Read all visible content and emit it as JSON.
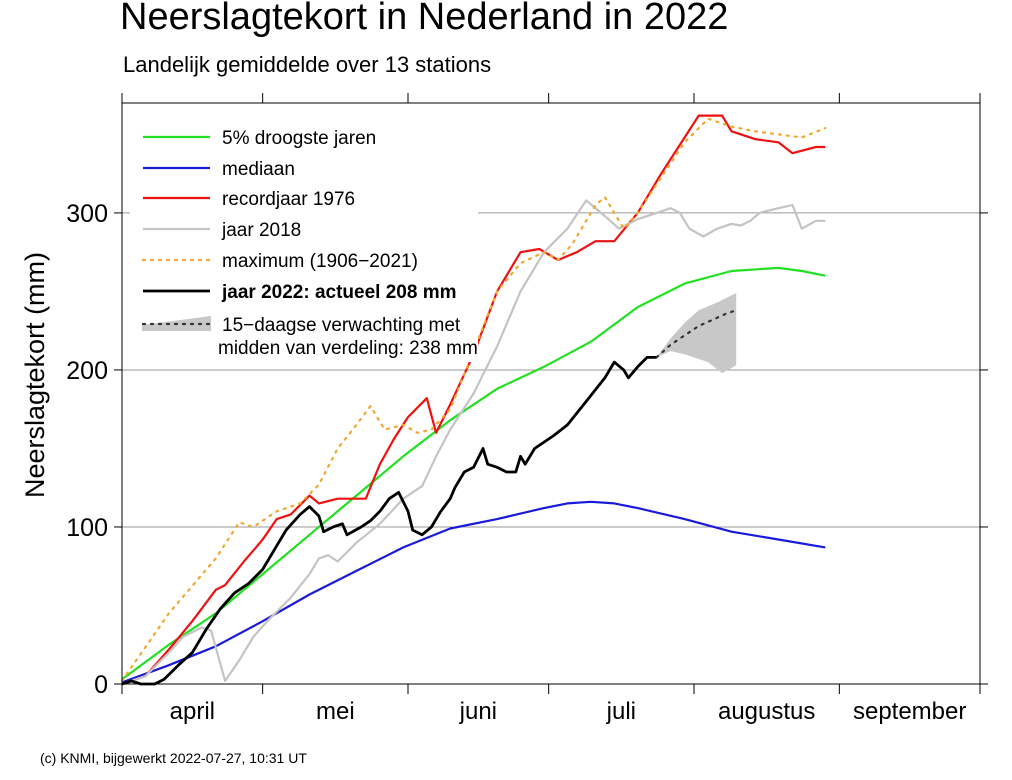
{
  "header": {
    "title": "Neerslagtekort in Nederland in 2022",
    "subtitle": "Landelijk gemiddelde over 13 stations"
  },
  "footer": {
    "credit": "(c) KNMI, bijgewerkt 2022-07-27, 10:31 UT"
  },
  "chart_data": {
    "type": "line",
    "title": "Neerslagtekort in Nederland in 2022",
    "subtitle": "Landelijk gemiddelde over 13 stations",
    "xlabel": "",
    "ylabel": "Neerslagtekort (mm)",
    "x_unit": "day of season (day 0 = 1 april)",
    "xlim": [
      0,
      183
    ],
    "ylim": [
      0,
      370
    ],
    "yticks": [
      0,
      100,
      200,
      300
    ],
    "month_ticks": [
      0,
      30,
      61,
      91,
      122,
      153,
      183
    ],
    "month_labels": [
      "april",
      "mei",
      "juni",
      "juli",
      "augustus",
      "september"
    ],
    "grid": "horizontal",
    "legend_position": "top-left",
    "series": [
      {
        "id": "p5",
        "name": "5% droogste jaren",
        "color": "#22e022",
        "width": 2.2,
        "style": "solid",
        "points": [
          [
            0,
            3
          ],
          [
            10,
            25
          ],
          [
            20,
            45
          ],
          [
            30,
            70
          ],
          [
            40,
            95
          ],
          [
            50,
            120
          ],
          [
            60,
            145
          ],
          [
            70,
            168
          ],
          [
            80,
            188
          ],
          [
            90,
            202
          ],
          [
            100,
            218
          ],
          [
            110,
            240
          ],
          [
            120,
            255
          ],
          [
            130,
            263
          ],
          [
            140,
            265
          ],
          [
            145,
            263
          ],
          [
            150,
            260
          ]
        ]
      },
      {
        "id": "median",
        "name": "mediaan",
        "color": "#1a1adb",
        "width": 2.2,
        "style": "solid",
        "points": [
          [
            0,
            1
          ],
          [
            10,
            12
          ],
          [
            20,
            24
          ],
          [
            30,
            40
          ],
          [
            40,
            57
          ],
          [
            50,
            72
          ],
          [
            60,
            87
          ],
          [
            70,
            99
          ],
          [
            80,
            105
          ],
          [
            90,
            112
          ],
          [
            95,
            115
          ],
          [
            100,
            116
          ],
          [
            105,
            115
          ],
          [
            110,
            112
          ],
          [
            120,
            105
          ],
          [
            130,
            97
          ],
          [
            140,
            92
          ],
          [
            150,
            87
          ]
        ]
      },
      {
        "id": "rec1976",
        "name": "recordjaar 1976",
        "color": "#ee1111",
        "width": 2.2,
        "style": "solid",
        "points": [
          [
            0,
            0
          ],
          [
            5,
            5
          ],
          [
            10,
            22
          ],
          [
            15,
            40
          ],
          [
            20,
            60
          ],
          [
            22,
            63
          ],
          [
            26,
            78
          ],
          [
            30,
            92
          ],
          [
            33,
            105
          ],
          [
            36,
            108
          ],
          [
            40,
            120
          ],
          [
            42,
            115
          ],
          [
            46,
            118
          ],
          [
            50,
            118
          ],
          [
            52,
            118
          ],
          [
            55,
            140
          ],
          [
            58,
            156
          ],
          [
            61,
            170
          ],
          [
            65,
            182
          ],
          [
            67,
            160
          ],
          [
            70,
            178
          ],
          [
            75,
            210
          ],
          [
            80,
            250
          ],
          [
            85,
            275
          ],
          [
            89,
            277
          ],
          [
            93,
            270
          ],
          [
            97,
            275
          ],
          [
            101,
            282
          ],
          [
            105,
            282
          ],
          [
            110,
            300
          ],
          [
            115,
            325
          ],
          [
            120,
            348
          ],
          [
            123,
            362
          ],
          [
            128,
            362
          ],
          [
            130,
            352
          ],
          [
            135,
            347
          ],
          [
            140,
            345
          ],
          [
            143,
            338
          ],
          [
            148,
            342
          ],
          [
            150,
            342
          ]
        ]
      },
      {
        "id": "y2018",
        "name": "jaar 2018",
        "color": "#c4c4c4",
        "width": 2.2,
        "style": "solid",
        "points": [
          [
            0,
            0
          ],
          [
            5,
            5
          ],
          [
            10,
            20
          ],
          [
            13,
            30
          ],
          [
            17,
            36
          ],
          [
            19,
            34
          ],
          [
            22,
            2
          ],
          [
            25,
            15
          ],
          [
            28,
            30
          ],
          [
            31,
            40
          ],
          [
            36,
            55
          ],
          [
            40,
            70
          ],
          [
            42,
            80
          ],
          [
            44,
            82
          ],
          [
            46,
            78
          ],
          [
            50,
            90
          ],
          [
            55,
            102
          ],
          [
            60,
            118
          ],
          [
            64,
            126
          ],
          [
            67,
            145
          ],
          [
            70,
            162
          ],
          [
            75,
            185
          ],
          [
            80,
            215
          ],
          [
            85,
            250
          ],
          [
            90,
            275
          ],
          [
            95,
            290
          ],
          [
            99,
            308
          ],
          [
            103,
            298
          ],
          [
            106,
            290
          ],
          [
            110,
            296
          ],
          [
            114,
            300
          ],
          [
            117,
            303
          ],
          [
            119,
            300
          ],
          [
            121,
            290
          ],
          [
            124,
            285
          ],
          [
            127,
            290
          ],
          [
            130,
            293
          ],
          [
            132,
            292
          ],
          [
            134,
            295
          ],
          [
            136,
            300
          ],
          [
            140,
            303
          ],
          [
            143,
            305
          ],
          [
            145,
            290
          ],
          [
            148,
            295
          ],
          [
            150,
            295
          ]
        ]
      },
      {
        "id": "max",
        "name": "maximum (1906−2021)",
        "color": "#f0a830",
        "width": 2.2,
        "style": "dotted",
        "points": [
          [
            0,
            2
          ],
          [
            10,
            45
          ],
          [
            20,
            80
          ],
          [
            25,
            103
          ],
          [
            28,
            100
          ],
          [
            33,
            110
          ],
          [
            38,
            115
          ],
          [
            42,
            127
          ],
          [
            46,
            150
          ],
          [
            50,
            165
          ],
          [
            53,
            177
          ],
          [
            56,
            162
          ],
          [
            60,
            165
          ],
          [
            63,
            160
          ],
          [
            66,
            162
          ],
          [
            70,
            175
          ],
          [
            75,
            212
          ],
          [
            80,
            250
          ],
          [
            85,
            268
          ],
          [
            90,
            275
          ],
          [
            93,
            270
          ],
          [
            96,
            280
          ],
          [
            99,
            295
          ],
          [
            101,
            305
          ],
          [
            103,
            310
          ],
          [
            107,
            290
          ],
          [
            110,
            300
          ],
          [
            120,
            345
          ],
          [
            125,
            360
          ],
          [
            130,
            355
          ],
          [
            135,
            352
          ],
          [
            140,
            350
          ],
          [
            145,
            348
          ],
          [
            150,
            354
          ]
        ]
      },
      {
        "id": "y2022",
        "name": "jaar 2022: actueel 208 mm",
        "color": "#000000",
        "width": 2.8,
        "style": "solid",
        "bold_label": true,
        "points": [
          [
            0,
            0
          ],
          [
            2,
            2
          ],
          [
            4,
            0
          ],
          [
            7,
            0
          ],
          [
            9,
            3
          ],
          [
            12,
            12
          ],
          [
            15,
            20
          ],
          [
            18,
            35
          ],
          [
            21,
            48
          ],
          [
            24,
            58
          ],
          [
            27,
            64
          ],
          [
            30,
            73
          ],
          [
            33,
            88
          ],
          [
            35,
            98
          ],
          [
            38,
            108
          ],
          [
            40,
            113
          ],
          [
            42,
            107
          ],
          [
            43,
            97
          ],
          [
            45,
            100
          ],
          [
            47,
            102
          ],
          [
            48,
            95
          ],
          [
            51,
            100
          ],
          [
            53,
            104
          ],
          [
            55,
            110
          ],
          [
            56,
            114
          ],
          [
            57,
            118
          ],
          [
            59,
            122
          ],
          [
            61,
            110
          ],
          [
            62,
            98
          ],
          [
            64,
            95
          ],
          [
            66,
            100
          ],
          [
            68,
            110
          ],
          [
            70,
            118
          ],
          [
            71,
            125
          ],
          [
            73,
            135
          ],
          [
            75,
            138
          ],
          [
            77,
            150
          ],
          [
            78,
            140
          ],
          [
            80,
            138
          ],
          [
            82,
            135
          ],
          [
            84,
            135
          ],
          [
            85,
            145
          ],
          [
            86,
            140
          ],
          [
            88,
            150
          ],
          [
            92,
            158
          ],
          [
            95,
            165
          ],
          [
            99,
            180
          ],
          [
            103,
            195
          ],
          [
            105,
            205
          ],
          [
            107,
            200
          ],
          [
            108,
            195
          ],
          [
            110,
            202
          ],
          [
            112,
            208
          ],
          [
            114,
            208
          ]
        ]
      },
      {
        "id": "forecast",
        "name": "15−daagse verwachting met",
        "name_line2": "midden van verdeling: 238 mm",
        "color": "#333333",
        "width": 2.2,
        "style": "dotted",
        "points": [
          [
            114,
            208
          ],
          [
            117,
            216
          ],
          [
            120,
            222
          ],
          [
            123,
            228
          ],
          [
            126,
            232
          ],
          [
            129,
            236
          ],
          [
            131,
            238
          ]
        ]
      }
    ],
    "forecast_band": {
      "color": "#c8c8c8",
      "upper": [
        [
          114,
          208
        ],
        [
          117,
          220
        ],
        [
          120,
          230
        ],
        [
          123,
          238
        ],
        [
          127,
          243
        ],
        [
          131,
          249
        ]
      ],
      "lower": [
        [
          114,
          208
        ],
        [
          117,
          212
        ],
        [
          120,
          210
        ],
        [
          122,
          208
        ],
        [
          125,
          205
        ],
        [
          128,
          198
        ],
        [
          131,
          203
        ]
      ]
    }
  }
}
